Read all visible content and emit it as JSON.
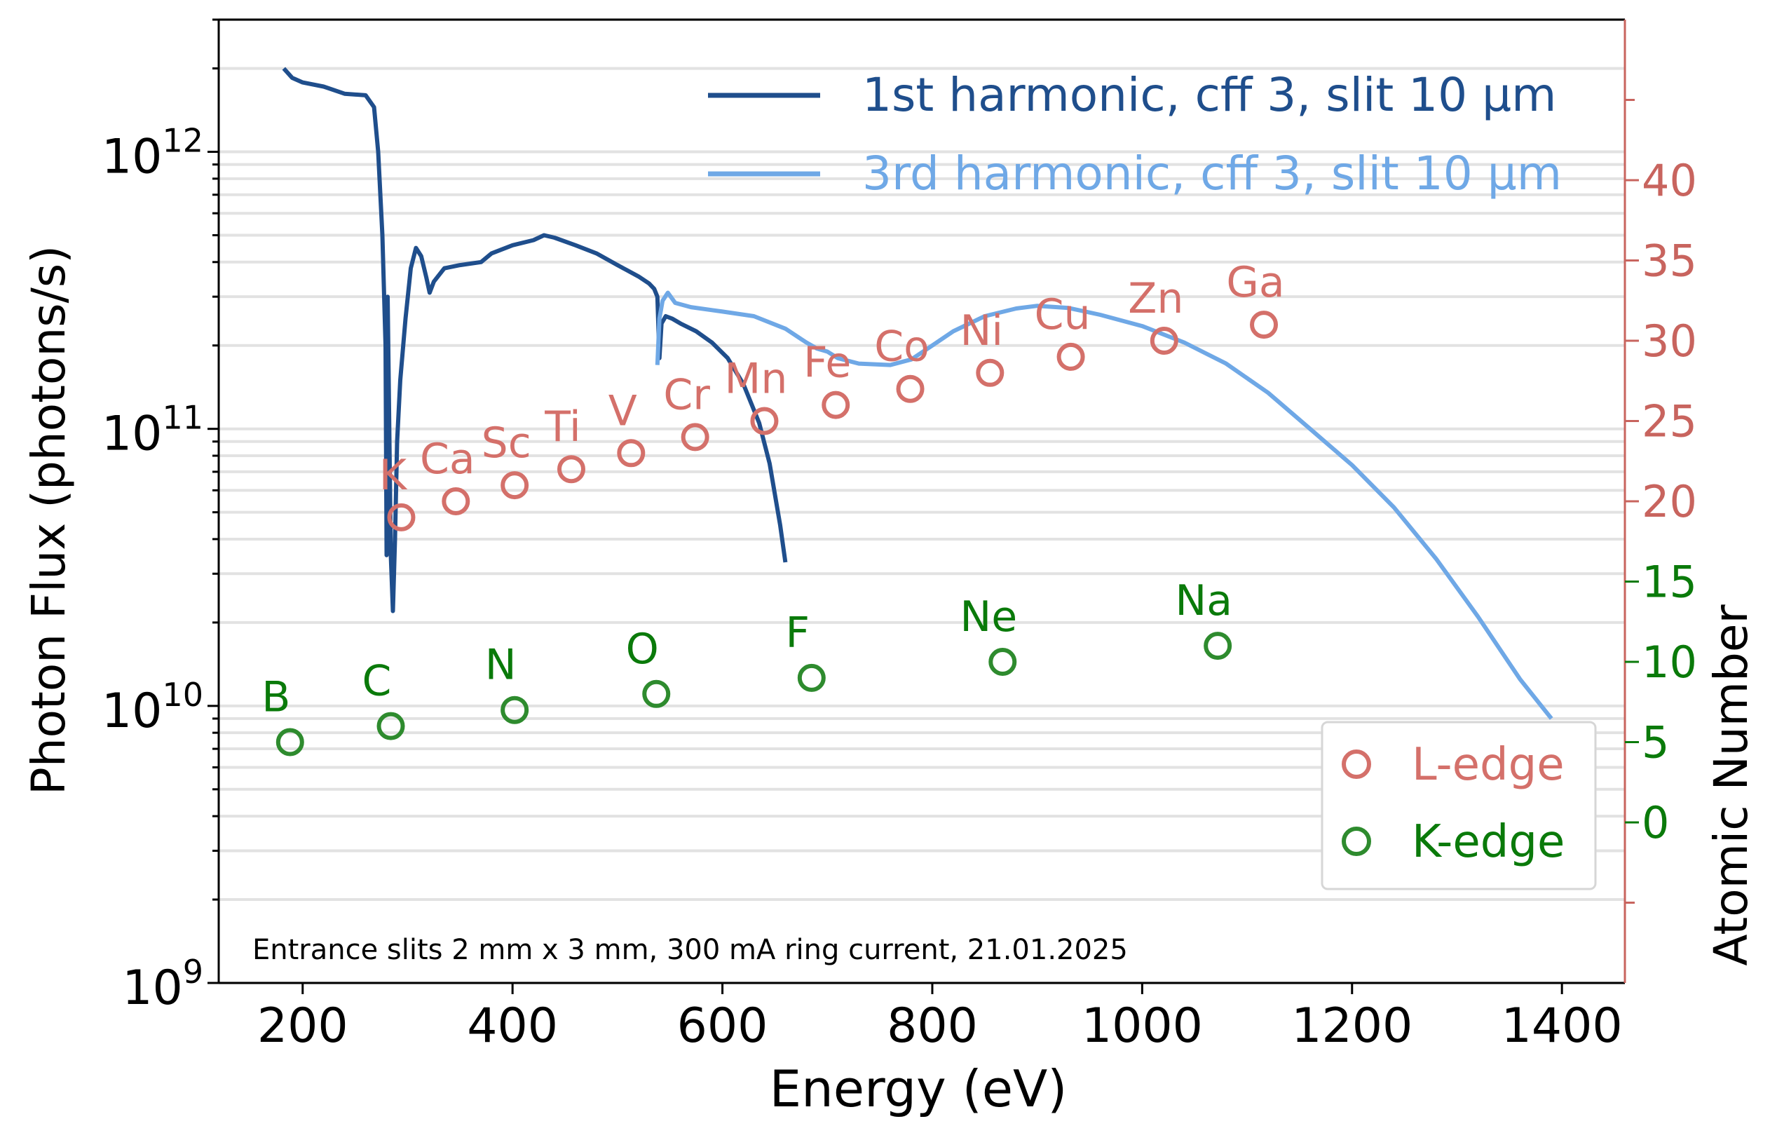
{
  "chart_data": {
    "type": "line",
    "xlabel": "Energy (eV)",
    "ylabel": "Photon Flux (photons/s)",
    "y2label": "Atomic Number",
    "xlim": [
      120,
      1460
    ],
    "ylim": [
      1000000000.0,
      3000000000000.0
    ],
    "y2lim": [
      -10,
      50
    ],
    "xticks": [
      "200",
      "400",
      "600",
      "800",
      "1000",
      "1200",
      "1400"
    ],
    "yticks": [
      {
        "base": "10",
        "exp": "9",
        "value": 1000000000.0
      },
      {
        "base": "10",
        "exp": "10",
        "value": 10000000000.0
      },
      {
        "base": "10",
        "exp": "11",
        "value": 100000000000.0
      },
      {
        "base": "10",
        "exp": "12",
        "value": 1000000000000.0
      }
    ],
    "y2ticks_red": [
      "20",
      "25",
      "30",
      "35",
      "40"
    ],
    "y2ticks_green": [
      "0",
      "5",
      "10",
      "15"
    ],
    "grid": "horizontal minor gridlines on",
    "annotation": "Entrance slits 2 mm x 3 mm, 300 mA ring current, 21.01.2025",
    "series": [
      {
        "name": "1st harmonic, cff 3, slit 10 μm",
        "color": "#1f4e8c",
        "points": [
          [
            182,
            2000000000000.0
          ],
          [
            190,
            1850000000000.0
          ],
          [
            200,
            1780000000000.0
          ],
          [
            220,
            1720000000000.0
          ],
          [
            240,
            1620000000000.0
          ],
          [
            260,
            1600000000000.0
          ],
          [
            268,
            1450000000000.0
          ],
          [
            272,
            1000000000000.0
          ],
          [
            276,
            500000000000.0
          ],
          [
            279,
            200000000000.0
          ],
          [
            280,
            35000000000.0
          ],
          [
            281,
            300000000000.0
          ],
          [
            282,
            150000000000.0
          ],
          [
            284,
            35000000000.0
          ],
          [
            286,
            22000000000.0
          ],
          [
            288,
            40000000000.0
          ],
          [
            290,
            90000000000.0
          ],
          [
            293,
            150000000000.0
          ],
          [
            298,
            250000000000.0
          ],
          [
            303,
            380000000000.0
          ],
          [
            308,
            450000000000.0
          ],
          [
            313,
            420000000000.0
          ],
          [
            318,
            350000000000.0
          ],
          [
            321,
            310000000000.0
          ],
          [
            325,
            340000000000.0
          ],
          [
            335,
            380000000000.0
          ],
          [
            350,
            390000000000.0
          ],
          [
            370,
            400000000000.0
          ],
          [
            380,
            430000000000.0
          ],
          [
            400,
            460000000000.0
          ],
          [
            420,
            480000000000.0
          ],
          [
            430,
            500000000000.0
          ],
          [
            440,
            490000000000.0
          ],
          [
            460,
            460000000000.0
          ],
          [
            480,
            430000000000.0
          ],
          [
            500,
            390000000000.0
          ],
          [
            520,
            355000000000.0
          ],
          [
            530,
            335000000000.0
          ],
          [
            535,
            320000000000.0
          ],
          [
            538,
            300000000000.0
          ],
          [
            540,
            180000000000.0
          ],
          [
            542,
            240000000000.0
          ],
          [
            546,
            255000000000.0
          ],
          [
            552,
            250000000000.0
          ],
          [
            560,
            240000000000.0
          ],
          [
            575,
            225000000000.0
          ],
          [
            590,
            205000000000.0
          ],
          [
            605,
            180000000000.0
          ],
          [
            620,
            145000000000.0
          ],
          [
            635,
            105000000000.0
          ],
          [
            645,
            75000000000.0
          ],
          [
            655,
            45000000000.0
          ],
          [
            660,
            33000000000.0
          ]
        ]
      },
      {
        "name": "3rd harmonic, cff 3, slit 10 μm",
        "color": "#6fa8e6",
        "points": [
          [
            538,
            170000000000.0
          ],
          [
            540,
            250000000000.0
          ],
          [
            543,
            290000000000.0
          ],
          [
            548,
            310000000000.0
          ],
          [
            555,
            285000000000.0
          ],
          [
            570,
            275000000000.0
          ],
          [
            600,
            265000000000.0
          ],
          [
            630,
            255000000000.0
          ],
          [
            660,
            230000000000.0
          ],
          [
            680,
            205000000000.0
          ],
          [
            690,
            195000000000.0
          ],
          [
            700,
            190000000000.0
          ],
          [
            710,
            180000000000.0
          ],
          [
            730,
            172000000000.0
          ],
          [
            760,
            170000000000.0
          ],
          [
            780,
            178000000000.0
          ],
          [
            800,
            200000000000.0
          ],
          [
            820,
            225000000000.0
          ],
          [
            850,
            255000000000.0
          ],
          [
            880,
            272000000000.0
          ],
          [
            900,
            278000000000.0
          ],
          [
            930,
            273000000000.0
          ],
          [
            960,
            258000000000.0
          ],
          [
            1000,
            235000000000.0
          ],
          [
            1040,
            205000000000.0
          ],
          [
            1080,
            172000000000.0
          ],
          [
            1120,
            135000000000.0
          ],
          [
            1160,
            100000000000.0
          ],
          [
            1200,
            74000000000.0
          ],
          [
            1240,
            52000000000.0
          ],
          [
            1280,
            34000000000.0
          ],
          [
            1320,
            21000000000.0
          ],
          [
            1360,
            12500000000.0
          ],
          [
            1390,
            9000000000.0
          ]
        ]
      }
    ],
    "l_edges": [
      {
        "element": "K",
        "energy": 294,
        "z": 19
      },
      {
        "element": "Ca",
        "energy": 346,
        "z": 20
      },
      {
        "element": "Sc",
        "energy": 402,
        "z": 21
      },
      {
        "element": "Ti",
        "energy": 456,
        "z": 22
      },
      {
        "element": "V",
        "energy": 513,
        "z": 23
      },
      {
        "element": "Cr",
        "energy": 574,
        "z": 24
      },
      {
        "element": "Mn",
        "energy": 640,
        "z": 25
      },
      {
        "element": "Fe",
        "energy": 708,
        "z": 26
      },
      {
        "element": "Co",
        "energy": 779,
        "z": 27
      },
      {
        "element": "Ni",
        "energy": 855,
        "z": 28
      },
      {
        "element": "Cu",
        "energy": 932,
        "z": 29
      },
      {
        "element": "Zn",
        "energy": 1021,
        "z": 30
      },
      {
        "element": "Ga",
        "energy": 1116,
        "z": 31
      }
    ],
    "k_edges": [
      {
        "element": "B",
        "energy": 188,
        "z": 5
      },
      {
        "element": "C",
        "energy": 284,
        "z": 6
      },
      {
        "element": "N",
        "energy": 402,
        "z": 7
      },
      {
        "element": "O",
        "energy": 537,
        "z": 8
      },
      {
        "element": "F",
        "energy": 685,
        "z": 9
      },
      {
        "element": "Ne",
        "energy": 867,
        "z": 10
      },
      {
        "element": "Na",
        "energy": 1072,
        "z": 11
      }
    ],
    "legend_lines": [
      "1st harmonic, cff 3, slit 10 μm",
      "3rd harmonic, cff 3, slit 10 μm"
    ],
    "legend_markers": [
      "L-edge",
      "K-edge"
    ],
    "colors": {
      "l_edge": "#d4706a",
      "k_edge": "#2e8b2e",
      "k_text": "#0a7a0a",
      "axis_right": "#c8645e"
    }
  }
}
